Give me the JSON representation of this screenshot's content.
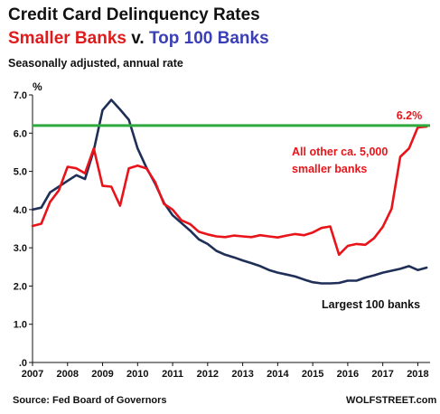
{
  "header": {
    "title": "Credit Card Delinquency Rates",
    "subtitle_part1": "Smaller Banks",
    "subtitle_part2": " v. ",
    "subtitle_part3": "Top 100 Banks",
    "note": "Seasonally adjusted, annual rate",
    "unit": "%"
  },
  "footer": {
    "source": "Source: Fed Board of Governors",
    "brand": "WOLFSTREET.com"
  },
  "colors": {
    "smaller_banks": "#e8141a",
    "top100": "#1f2f57",
    "reference": "#2eaa3f",
    "subtitle_blue": "#3b3fb5"
  },
  "chart_data": {
    "type": "line",
    "ylim": [
      0,
      7
    ],
    "xlim": [
      2007,
      2018.35
    ],
    "yticks": [
      ".0",
      "1.0",
      "2.0",
      "3.0",
      "4.0",
      "5.0",
      "6.0",
      "7.0"
    ],
    "xticks": [
      "2007",
      "2008",
      "2009",
      "2010",
      "2011",
      "2012",
      "2013",
      "2014",
      "2015",
      "2016",
      "2017",
      "2018"
    ],
    "grid": false,
    "reference_line": {
      "value": 6.2,
      "label": "6.2%"
    },
    "series": [
      {
        "name": "All other ca. 5,000 smaller banks",
        "label_lines": [
          "All other ca. 5,000",
          "smaller banks"
        ],
        "x": [
          2007.0,
          2007.25,
          2007.5,
          2007.75,
          2008.0,
          2008.25,
          2008.5,
          2008.75,
          2009.0,
          2009.25,
          2009.5,
          2009.75,
          2010.0,
          2010.25,
          2010.5,
          2010.75,
          2011.0,
          2011.25,
          2011.5,
          2011.75,
          2012.0,
          2012.25,
          2012.5,
          2012.75,
          2013.0,
          2013.25,
          2013.5,
          2013.75,
          2014.0,
          2014.25,
          2014.5,
          2014.75,
          2015.0,
          2015.25,
          2015.5,
          2015.75,
          2016.0,
          2016.25,
          2016.5,
          2016.75,
          2017.0,
          2017.25,
          2017.5,
          2017.75,
          2018.0,
          2018.25
        ],
        "y": [
          3.57,
          3.63,
          4.2,
          4.5,
          5.12,
          5.08,
          4.95,
          5.6,
          4.62,
          4.6,
          4.1,
          5.08,
          5.15,
          5.08,
          4.72,
          4.15,
          4.0,
          3.72,
          3.62,
          3.42,
          3.35,
          3.3,
          3.28,
          3.32,
          3.3,
          3.28,
          3.33,
          3.3,
          3.27,
          3.32,
          3.36,
          3.33,
          3.4,
          3.52,
          3.56,
          2.82,
          3.05,
          3.1,
          3.08,
          3.25,
          3.55,
          4.02,
          5.38,
          5.6,
          6.15,
          6.17
        ]
      },
      {
        "name": "Largest 100 banks",
        "label_lines": [
          "Largest 100 banks"
        ],
        "x": [
          2007.0,
          2007.25,
          2007.5,
          2007.75,
          2008.0,
          2008.25,
          2008.5,
          2008.75,
          2009.0,
          2009.25,
          2009.5,
          2009.75,
          2010.0,
          2010.25,
          2010.5,
          2010.75,
          2011.0,
          2011.25,
          2011.5,
          2011.75,
          2012.0,
          2012.25,
          2012.5,
          2012.75,
          2013.0,
          2013.25,
          2013.5,
          2013.75,
          2014.0,
          2014.25,
          2014.5,
          2014.75,
          2015.0,
          2015.25,
          2015.5,
          2015.75,
          2016.0,
          2016.25,
          2016.5,
          2016.75,
          2017.0,
          2017.25,
          2017.5,
          2017.75,
          2018.0,
          2018.25
        ],
        "y": [
          4.0,
          4.05,
          4.45,
          4.6,
          4.75,
          4.9,
          4.8,
          5.55,
          6.6,
          6.87,
          6.62,
          6.35,
          5.6,
          5.1,
          4.68,
          4.18,
          3.85,
          3.65,
          3.45,
          3.22,
          3.1,
          2.92,
          2.82,
          2.75,
          2.67,
          2.6,
          2.52,
          2.42,
          2.35,
          2.3,
          2.25,
          2.17,
          2.1,
          2.07,
          2.07,
          2.08,
          2.14,
          2.14,
          2.22,
          2.28,
          2.35,
          2.4,
          2.45,
          2.52,
          2.42,
          2.48
        ]
      }
    ]
  }
}
